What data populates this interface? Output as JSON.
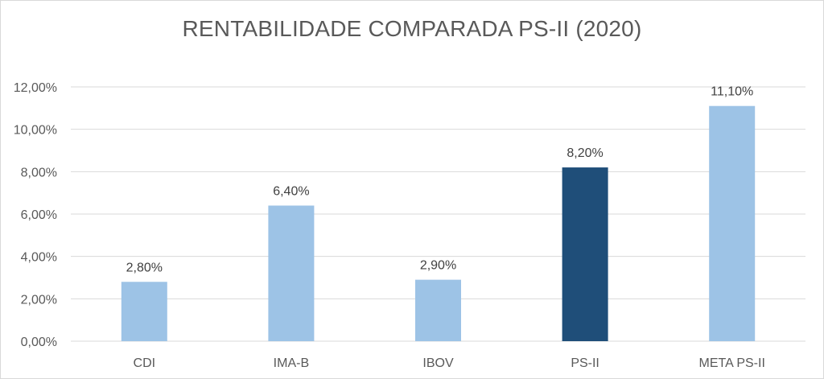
{
  "chart_data": {
    "type": "bar",
    "title": "RENTABILIDADE COMPARADA PS-II (2020)",
    "xlabel": "",
    "ylabel": "",
    "categories": [
      "CDI",
      "IMA-B",
      "IBOV",
      "PS-II",
      "META PS-II"
    ],
    "values": [
      2.8,
      6.4,
      2.9,
      8.2,
      11.1
    ],
    "data_labels": [
      "2,80%",
      "6,40%",
      "2,90%",
      "8,20%",
      "11,10%"
    ],
    "ylim": [
      0,
      12
    ],
    "yticks": [
      0,
      2,
      4,
      6,
      8,
      10,
      12
    ],
    "ytick_labels": [
      "0,00%",
      "2,00%",
      "4,00%",
      "6,00%",
      "8,00%",
      "10,00%",
      "12,00%"
    ],
    "grid": true,
    "legend": "none",
    "colors": {
      "default_bar": "#9dc3e6",
      "highlight_bar": "#1f4e79",
      "highlight_category": "PS-II",
      "grid": "#d9d9d9",
      "text": "#595959"
    }
  }
}
